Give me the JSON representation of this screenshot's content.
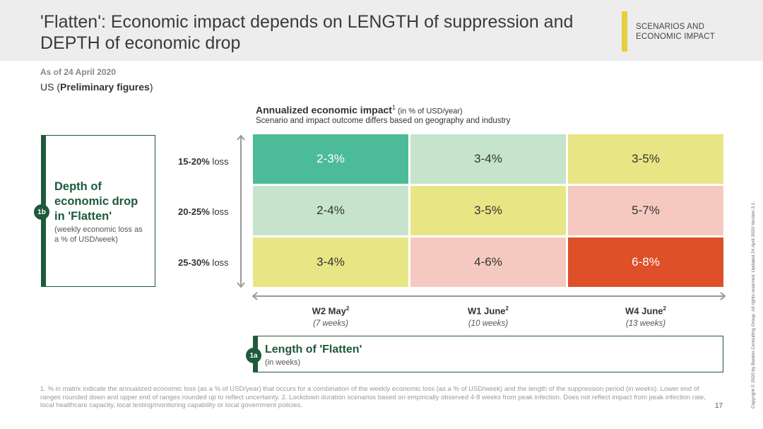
{
  "header": {
    "title": "'Flatten': Economic impact depends on LENGTH of suppression and DEPTH of economic drop",
    "section_label_line1": "SCENARIOS AND",
    "section_label_line2": "ECONOMIC IMPACT"
  },
  "meta": {
    "as_of": "As of 24 April 2020",
    "region_prefix": "US (",
    "region_bold": "Preliminary figures",
    "region_suffix": ")"
  },
  "chart": {
    "title": "Annualized economic impact",
    "title_sup": "1",
    "title_unit": " (in % of USD/year)",
    "subtitle": "Scenario and impact outcome differs based on geography and industry"
  },
  "depth": {
    "badge": "1b",
    "title_line1": "Depth of",
    "title_line2": "economic drop",
    "title_line3": "in 'Flatten'",
    "sub_line1": "(weekly economic loss as",
    "sub_line2": "a % of USD/week)"
  },
  "rows": [
    {
      "bold": "15-20%",
      "rest": " loss"
    },
    {
      "bold": "20-25%",
      "rest": " loss"
    },
    {
      "bold": "25-30%",
      "rest": " loss"
    }
  ],
  "columns": [
    {
      "label": "W2 May",
      "sup": "2",
      "sub": "(7 weeks)"
    },
    {
      "label": "W1 June",
      "sup": "2",
      "sub": "(10 weeks)"
    },
    {
      "label": "W4 June",
      "sup": "2",
      "sub": "(13 weeks)"
    }
  ],
  "matrix": [
    [
      "2-3%",
      "3-4%",
      "3-5%"
    ],
    [
      "2-4%",
      "3-5%",
      "5-7%"
    ],
    [
      "3-4%",
      "4-6%",
      "6-8%"
    ]
  ],
  "colors": {
    "dark_green": "#1e5a3c",
    "cell_green": "#4cbc98",
    "cell_light_green": "#c6e4cc",
    "cell_yellow": "#e8e585",
    "cell_pink": "#f5c9bf",
    "cell_red": "#dd5028"
  },
  "length": {
    "badge": "1a",
    "title": "Length of 'Flatten'",
    "sub": "(in weeks)"
  },
  "footnote": "1. % in matrix indicate the annualized economic loss (as a % of USD/year) that occurs for a combination of the weekly economic loss (as a % of USD/week) and the length of the suppression period (in weeks). Lower end of ranges rounded down and upper end of ranges rounded up to reflect uncertainty. 2. Lockdown duration scenarios based on empirically observed 4-8 weeks from peak infection. Does not reflect impact from peak infection rate, local healthcare capacity, local testing/monitoring capability or local government policies.",
  "page_number": "17",
  "copyright": "Copyright © 2020 by Boston Consulting Group. All rights reserved. Updated 24 April 2020 Version 3.1."
}
